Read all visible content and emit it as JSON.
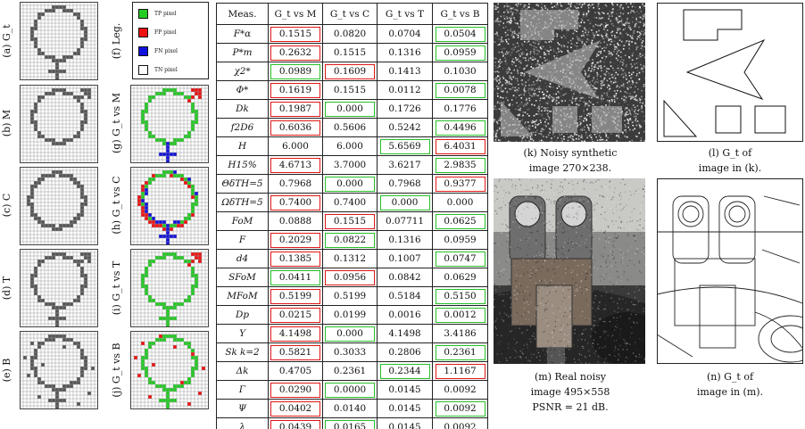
{
  "left_labels": [
    "(a) G_t",
    "(b) M",
    "(c) C",
    "(d) T",
    "(e) B"
  ],
  "right_labels": [
    "(f) Leg.",
    "(g) G_t vs M",
    "(h) G_t vs C",
    "(i) G_t vs T",
    "(j) G_t vs B"
  ],
  "legend": {
    "items": [
      {
        "label": "TP pixel",
        "color": "#22cc22"
      },
      {
        "label": "FP pixel",
        "color": "#ee1111"
      },
      {
        "label": "FN pixel",
        "color": "#1111dd"
      },
      {
        "label": "TN pixel",
        "color": "#ffffff"
      }
    ]
  },
  "colors": {
    "grid": "#9a9a9a",
    "shape": "#555555",
    "tp": "#22cc22",
    "fp": "#ee1111",
    "fn": "#1111dd"
  },
  "table": {
    "headers": [
      "Meas.",
      "G_t vs M",
      "G_t vs C",
      "G_t vs T",
      "G_t vs B"
    ],
    "rows": [
      {
        "m": "F*α",
        "v": [
          "0.1515",
          "0.0820",
          "0.0704",
          "0.0504"
        ],
        "b": [
          "r",
          "",
          "",
          "g"
        ]
      },
      {
        "m": "P*m",
        "v": [
          "0.2632",
          "0.1515",
          "0.1316",
          "0.0959"
        ],
        "b": [
          "r",
          "",
          "",
          "g"
        ]
      },
      {
        "m": "χ2*",
        "v": [
          "0.0989",
          "0.1609",
          "0.1413",
          "0.1030"
        ],
        "b": [
          "g",
          "r",
          "",
          ""
        ]
      },
      {
        "m": "Φ*",
        "v": [
          "0.1619",
          "0.1515",
          "0.0112",
          "0.0078"
        ],
        "b": [
          "r",
          "",
          "",
          "g"
        ]
      },
      {
        "m": "Dk",
        "v": [
          "0.1987",
          "0.000",
          "0.1726",
          "0.1776"
        ],
        "b": [
          "r",
          "g",
          "",
          ""
        ]
      },
      {
        "m": "f2D6",
        "v": [
          "0.6036",
          "0.5606",
          "0.5242",
          "0.4496"
        ],
        "b": [
          "r",
          "",
          "",
          "g"
        ]
      },
      {
        "m": "H",
        "v": [
          "6.000",
          "6.000",
          "5.6569",
          "6.4031"
        ],
        "b": [
          "",
          "",
          "g",
          "r"
        ]
      },
      {
        "m": "H15%",
        "v": [
          "4.6713",
          "3.7000",
          "3.6217",
          "2.9835"
        ],
        "b": [
          "r",
          "",
          "",
          "g"
        ]
      },
      {
        "m": "ΘδTH=5",
        "v": [
          "0.7968",
          "0.000",
          "0.7968",
          "0.9377"
        ],
        "b": [
          "",
          "g",
          "",
          "r"
        ]
      },
      {
        "m": "ΩδTH=5",
        "v": [
          "0.7400",
          "0.7400",
          "0.000",
          "0.000"
        ],
        "b": [
          "r",
          "",
          "g",
          ""
        ]
      },
      {
        "m": "FoM",
        "v": [
          "0.0888",
          "0.1515",
          "0.07711",
          "0.0625"
        ],
        "b": [
          "",
          "r",
          "",
          "g"
        ]
      },
      {
        "m": "F",
        "v": [
          "0.2029",
          "0.0822",
          "0.1316",
          "0.0959"
        ],
        "b": [
          "r",
          "g",
          "",
          ""
        ]
      },
      {
        "m": "d4",
        "v": [
          "0.1385",
          "0.1312",
          "0.1007",
          "0.0747"
        ],
        "b": [
          "r",
          "",
          "",
          "g"
        ]
      },
      {
        "m": "SFoM",
        "v": [
          "0.0411",
          "0.0956",
          "0.0842",
          "0.0629"
        ],
        "b": [
          "g",
          "r",
          "",
          ""
        ]
      },
      {
        "m": "MFoM",
        "v": [
          "0.5199",
          "0.5199",
          "0.5184",
          "0.5150"
        ],
        "b": [
          "r",
          "",
          "",
          "g"
        ]
      },
      {
        "m": "Dp",
        "v": [
          "0.0215",
          "0.0199",
          "0.0016",
          "0.0012"
        ],
        "b": [
          "r",
          "",
          "",
          "g"
        ]
      },
      {
        "m": "Υ",
        "v": [
          "4.1498",
          "0.000",
          "4.1498",
          "3.4186"
        ],
        "b": [
          "r",
          "g",
          "",
          ""
        ]
      },
      {
        "m": "Sk k=2",
        "v": [
          "0.5821",
          "0.3033",
          "0.2806",
          "0.2361"
        ],
        "b": [
          "r",
          "",
          "",
          "g"
        ]
      },
      {
        "m": "Δk",
        "v": [
          "0.4705",
          "0.2361",
          "0.2344",
          "1.1167"
        ],
        "b": [
          "",
          "",
          "g",
          "r"
        ]
      },
      {
        "m": "Γ",
        "v": [
          "0.0290",
          "0.0000",
          "0.0145",
          "0.0092"
        ],
        "b": [
          "r",
          "g",
          "",
          ""
        ]
      },
      {
        "m": "Ψ",
        "v": [
          "0.0402",
          "0.0140",
          "0.0145",
          "0.0092"
        ],
        "b": [
          "r",
          "",
          "",
          "g"
        ]
      },
      {
        "m": "λ",
        "v": [
          "0.0439",
          "0.0165",
          "0.0145",
          "0.0092"
        ],
        "b": [
          "r",
          "g",
          "",
          ""
        ]
      }
    ]
  },
  "captions": {
    "k": [
      "(k) Noisy synthetic",
      "image 270×238."
    ],
    "l": [
      "(l) G_t of",
      "image in (k)."
    ],
    "m": [
      "(m) Real noisy",
      "image 495×558",
      "PSNR = 21 dB."
    ],
    "n": [
      "(n) G_t of",
      "image in (m)."
    ]
  }
}
